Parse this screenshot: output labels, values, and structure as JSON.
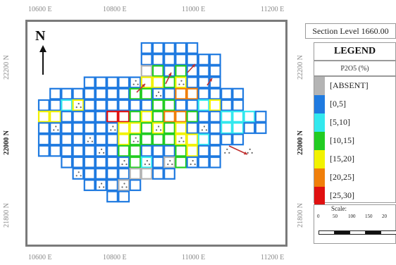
{
  "axes": {
    "top_x": [
      "10600 E",
      "10800 E",
      "11000 E",
      "11200 E"
    ],
    "bottom_x": [
      "10600 E",
      "10800 E",
      "11000 E",
      "11200 E"
    ],
    "left_y": [
      "22200 N",
      "22000 N",
      "21800 N"
    ],
    "right_y": [
      "22200 N",
      "22000 N",
      "21800 N"
    ]
  },
  "north_label": "N",
  "section": "Section Level 1660.00",
  "legend": {
    "title": "LEGEND",
    "parameter": "P2O5 (%)",
    "items": [
      {
        "label": "[ABSENT]",
        "color": "#b4b4b4"
      },
      {
        "label": "[0,5]",
        "color": "#1f7ae0"
      },
      {
        "label": "[5,10]",
        "color": "#33e8ee"
      },
      {
        "label": "[10,15]",
        "color": "#22cc22"
      },
      {
        "label": "[15,20]",
        "color": "#f2f200"
      },
      {
        "label": "[20,25]",
        "color": "#f07f0a"
      },
      {
        "label": "[25,30]",
        "color": "#e01010"
      }
    ]
  },
  "scale": {
    "title": "Scale:",
    "ticks": [
      "0",
      "50",
      "100",
      "150",
      "20"
    ]
  }
}
